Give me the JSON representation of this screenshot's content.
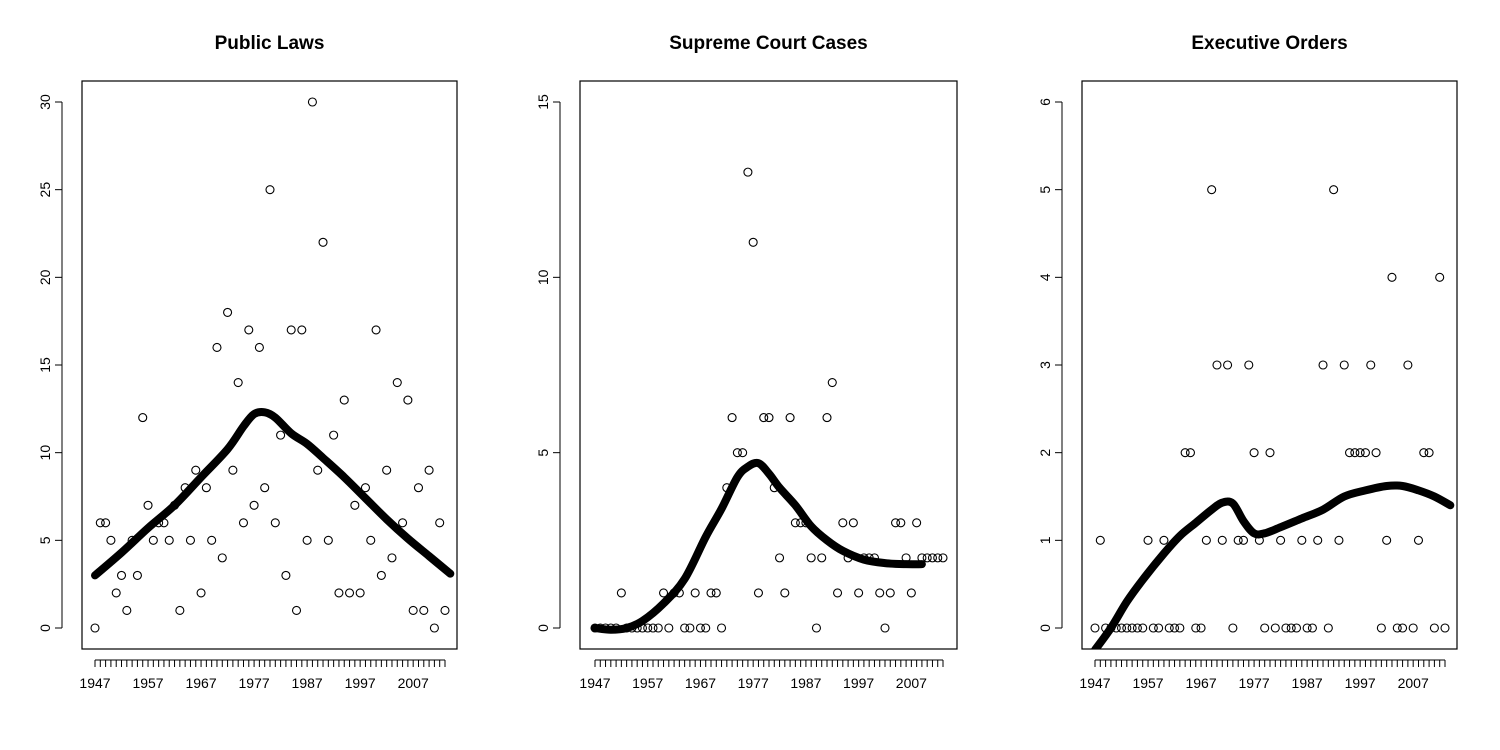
{
  "chart_data": [
    {
      "type": "scatter",
      "title": "Public Laws",
      "xlabel": "",
      "ylabel": "",
      "xlim": [
        1947,
        2014
      ],
      "ylim": [
        0,
        30
      ],
      "yticks": [
        0,
        5,
        10,
        15,
        20,
        25,
        30
      ],
      "xtick_labels": [
        "1947",
        "1957",
        "1967",
        "1977",
        "1987",
        "1997",
        "2007"
      ],
      "grid": false,
      "points": {
        "x": [
          1947,
          1948,
          1949,
          1950,
          1951,
          1952,
          1953,
          1954,
          1955,
          1956,
          1957,
          1958,
          1959,
          1960,
          1961,
          1962,
          1963,
          1964,
          1965,
          1966,
          1967,
          1968,
          1969,
          1970,
          1971,
          1972,
          1973,
          1974,
          1975,
          1976,
          1977,
          1978,
          1979,
          1980,
          1981,
          1982,
          1983,
          1984,
          1985,
          1986,
          1987,
          1988,
          1989,
          1990,
          1991,
          1992,
          1993,
          1994,
          1995,
          1996,
          1997,
          1998,
          1999,
          2000,
          2001,
          2002,
          2003,
          2004,
          2005,
          2006,
          2007,
          2008,
          2009,
          2010,
          2011,
          2012,
          2013
        ],
        "y": [
          0,
          6,
          6,
          5,
          2,
          3,
          1,
          5,
          3,
          12,
          7,
          5,
          6,
          6,
          5,
          7,
          1,
          8,
          5,
          9,
          2,
          8,
          5,
          16,
          4,
          18,
          9,
          14,
          6,
          17,
          7,
          16,
          8,
          25,
          6,
          11,
          3,
          17,
          1,
          17,
          5,
          30,
          9,
          22,
          5,
          11,
          2,
          13,
          2,
          7,
          2,
          8,
          5,
          17,
          3,
          9,
          4,
          14,
          6,
          13,
          1,
          8,
          1,
          9,
          0,
          6,
          1
        ]
      },
      "smooth": {
        "x": [
          1947,
          1952,
          1957,
          1962,
          1967,
          1972,
          1975,
          1977,
          1979,
          1981,
          1984,
          1987,
          1990,
          1994,
          1998,
          2002,
          2006,
          2010,
          2014
        ],
        "y": [
          3.0,
          4.3,
          5.7,
          7.0,
          8.6,
          10.2,
          11.5,
          12.2,
          12.3,
          12.0,
          11.1,
          10.5,
          9.7,
          8.6,
          7.4,
          6.2,
          5.1,
          4.1,
          3.1
        ]
      }
    },
    {
      "type": "scatter",
      "title": "Supreme Court Cases",
      "xlabel": "",
      "ylabel": "",
      "xlim": [
        1947,
        2014
      ],
      "ylim": [
        0,
        15
      ],
      "yticks": [
        0,
        5,
        10,
        15
      ],
      "xtick_labels": [
        "1947",
        "1957",
        "1967",
        "1977",
        "1987",
        "1997",
        "2007"
      ],
      "grid": false,
      "points": {
        "x": [
          1947,
          1948,
          1949,
          1950,
          1951,
          1952,
          1953,
          1954,
          1955,
          1956,
          1957,
          1958,
          1959,
          1960,
          1961,
          1962,
          1963,
          1964,
          1965,
          1966,
          1967,
          1968,
          1969,
          1970,
          1971,
          1972,
          1973,
          1974,
          1975,
          1976,
          1977,
          1978,
          1979,
          1980,
          1981,
          1982,
          1983,
          1984,
          1985,
          1986,
          1987,
          1988,
          1989,
          1990,
          1991,
          1992,
          1993,
          1994,
          1995,
          1996,
          1997,
          1998,
          1999,
          2000,
          2001,
          2002,
          2003,
          2004,
          2005,
          2006,
          2007,
          2008,
          2009,
          2010,
          2011,
          2012,
          2013
        ],
        "y": [
          0,
          0,
          0,
          0,
          0,
          1,
          0,
          0,
          0,
          0,
          0,
          0,
          0,
          1,
          0,
          1,
          1,
          0,
          0,
          1,
          0,
          0,
          1,
          1,
          0,
          4,
          6,
          5,
          5,
          13,
          11,
          1,
          6,
          6,
          4,
          2,
          1,
          6,
          3,
          3,
          3,
          2,
          0,
          2,
          6,
          7,
          1,
          3,
          2,
          3,
          1,
          2,
          2,
          2,
          1,
          0,
          1,
          3,
          3,
          2,
          1,
          3,
          2,
          2,
          2,
          2,
          2
        ]
      },
      "smooth": {
        "x": [
          1947,
          1950,
          1953,
          1956,
          1960,
          1964,
          1968,
          1971,
          1974,
          1976,
          1978,
          1980,
          1982,
          1985,
          1988,
          1991,
          1994,
          1998,
          2002,
          2006,
          2009
        ],
        "y": [
          0.0,
          -0.05,
          0.0,
          0.2,
          0.7,
          1.4,
          2.6,
          3.4,
          4.3,
          4.6,
          4.7,
          4.4,
          4.0,
          3.5,
          2.9,
          2.5,
          2.2,
          1.95,
          1.85,
          1.82,
          1.82
        ]
      }
    },
    {
      "type": "scatter",
      "title": "Executive Orders",
      "xlabel": "",
      "ylabel": "",
      "xlim": [
        1947,
        2014
      ],
      "ylim": [
        0,
        6
      ],
      "yticks": [
        0,
        1,
        2,
        3,
        4,
        5,
        6
      ],
      "xtick_labels": [
        "1947",
        "1957",
        "1967",
        "1977",
        "1987",
        "1997",
        "2007"
      ],
      "grid": false,
      "points": {
        "x": [
          1947,
          1948,
          1949,
          1950,
          1951,
          1952,
          1953,
          1954,
          1955,
          1956,
          1957,
          1958,
          1959,
          1960,
          1961,
          1962,
          1963,
          1964,
          1965,
          1966,
          1967,
          1968,
          1969,
          1970,
          1971,
          1972,
          1973,
          1974,
          1975,
          1976,
          1977,
          1978,
          1979,
          1980,
          1981,
          1982,
          1983,
          1984,
          1985,
          1986,
          1987,
          1988,
          1989,
          1990,
          1991,
          1992,
          1993,
          1994,
          1995,
          1996,
          1997,
          1998,
          1999,
          2000,
          2001,
          2002,
          2003,
          2004,
          2005,
          2006,
          2007,
          2008,
          2009,
          2010,
          2011,
          2012,
          2013
        ],
        "y": [
          0,
          1,
          0,
          0,
          0,
          0,
          0,
          0,
          0,
          0,
          1,
          0,
          0,
          1,
          0,
          0,
          0,
          2,
          2,
          0,
          0,
          1,
          5,
          3,
          1,
          3,
          0,
          1,
          1,
          3,
          2,
          1,
          0,
          2,
          0,
          1,
          0,
          0,
          0,
          1,
          0,
          0,
          1,
          3,
          0,
          5,
          1,
          3,
          2,
          2,
          2,
          2,
          3,
          2,
          0,
          1,
          4,
          0,
          0,
          3,
          0,
          1,
          2,
          2,
          0,
          4,
          0
        ]
      },
      "smooth": {
        "x": [
          1947,
          1950,
          1953,
          1956,
          1960,
          1963,
          1966,
          1969,
          1971,
          1973,
          1975,
          1977,
          1979,
          1982,
          1986,
          1990,
          1994,
          1998,
          2002,
          2005,
          2008,
          2011,
          2014
        ],
        "y": [
          -0.25,
          0.0,
          0.3,
          0.55,
          0.85,
          1.05,
          1.2,
          1.35,
          1.43,
          1.42,
          1.22,
          1.08,
          1.08,
          1.15,
          1.25,
          1.35,
          1.5,
          1.57,
          1.62,
          1.62,
          1.57,
          1.5,
          1.4
        ]
      }
    }
  ]
}
